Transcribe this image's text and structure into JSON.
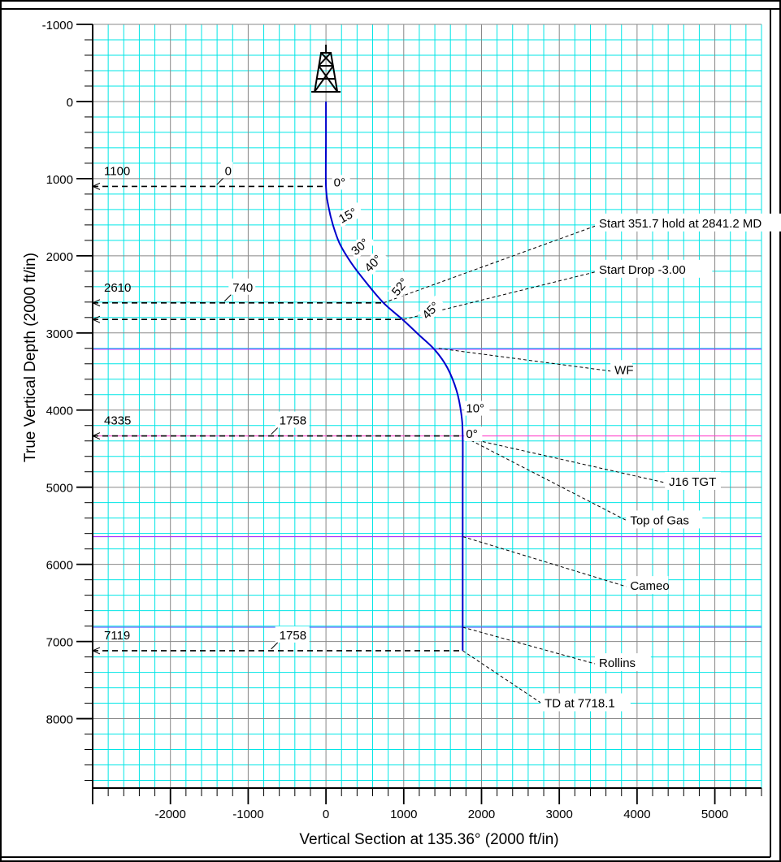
{
  "chart_data": {
    "type": "line",
    "xlabel": "Vertical Section at 135.36° (2000 ft/in)",
    "ylabel": "True Vertical Depth (2000 ft/in)",
    "xlim": [
      -3000,
      5600
    ],
    "ylim": [
      -1000,
      8900
    ],
    "x_ticks": [
      -2000,
      -1000,
      0,
      1000,
      2000,
      3000,
      4000,
      5000
    ],
    "y_ticks": [
      -1000,
      0,
      1000,
      2000,
      3000,
      4000,
      5000,
      6000,
      7000,
      8000
    ],
    "grid": true,
    "grid_minor_step": 200,
    "grid_major_step": 1000,
    "series": [
      {
        "color": "#0000cc",
        "points": [
          [
            0,
            0
          ],
          [
            0,
            500
          ],
          [
            0,
            1100
          ],
          [
            30,
            1350
          ],
          [
            90,
            1600
          ],
          [
            180,
            1850
          ],
          [
            330,
            2100
          ],
          [
            520,
            2350
          ],
          [
            740,
            2610
          ],
          [
            1000,
            2840
          ],
          [
            1200,
            3030
          ],
          [
            1400,
            3220
          ],
          [
            1560,
            3450
          ],
          [
            1680,
            3750
          ],
          [
            1740,
            4050
          ],
          [
            1758,
            4335
          ],
          [
            1758,
            5000
          ],
          [
            1758,
            6000
          ],
          [
            1758,
            7119
          ]
        ]
      }
    ],
    "inclination_labels": [
      {
        "text": "0°",
        "x": 100,
        "y": 1100
      },
      {
        "text": "15°",
        "x": 200,
        "y": 1580,
        "rotate": -28
      },
      {
        "text": "30°",
        "x": 380,
        "y": 2000,
        "rotate": -40
      },
      {
        "text": "40°",
        "x": 560,
        "y": 2220,
        "rotate": -45
      },
      {
        "text": "52°",
        "x": 920,
        "y": 2530,
        "rotate": -52
      },
      {
        "text": "45°",
        "x": 1300,
        "y": 2830,
        "rotate": -45
      },
      {
        "text": "10°",
        "x": 1800,
        "y": 4030
      },
      {
        "text": "0°",
        "x": 1800,
        "y": 4360
      }
    ],
    "markers": [
      {
        "tvd": "1100",
        "vs": "0",
        "y": 1100,
        "x": 0
      },
      {
        "tvd": "2610",
        "vs": "740",
        "y": 2610,
        "x": 740
      },
      {
        "tvd": "",
        "vs": "",
        "y": 2825,
        "x": 1000
      },
      {
        "tvd": "4335",
        "vs": "1758",
        "y": 4335,
        "x": 1758
      },
      {
        "tvd": "7119",
        "vs": "1758",
        "y": 7119,
        "x": 1758
      }
    ],
    "formations": [
      {
        "name": "WF",
        "tvd": 3210,
        "color": "#aa33ff"
      },
      {
        "name": "",
        "tvd": 4335,
        "color": "#ff44cc"
      },
      {
        "name": "",
        "tvd": 5640,
        "color": "#aa33ff"
      },
      {
        "name": "",
        "tvd": 6815,
        "color": "#6666ff"
      }
    ],
    "annotations": [
      {
        "text": "Start 351.7 hold at 2841.2 MD",
        "from": [
          740,
          2610
        ],
        "to": [
          3500,
          1600
        ]
      },
      {
        "text": "Start Drop -3.00",
        "from": [
          1000,
          2825
        ],
        "to": [
          3500,
          2200
        ]
      },
      {
        "text": "WF",
        "from": [
          1450,
          3200
        ],
        "to": [
          3700,
          3500
        ]
      },
      {
        "text": "J16 TGT",
        "from": [
          1800,
          4360
        ],
        "to": [
          4400,
          4950
        ]
      },
      {
        "text": "Top of Gas",
        "from": [
          1800,
          4360
        ],
        "to": [
          3900,
          5450
        ]
      },
      {
        "text": "Cameo",
        "from": [
          1758,
          5640
        ],
        "to": [
          3900,
          6300
        ]
      },
      {
        "text": "Rollins",
        "from": [
          1758,
          6815
        ],
        "to": [
          3500,
          7300
        ]
      },
      {
        "text": "TD at 7718.1",
        "from": [
          1758,
          7119
        ],
        "to": [
          2800,
          7820
        ]
      }
    ]
  }
}
